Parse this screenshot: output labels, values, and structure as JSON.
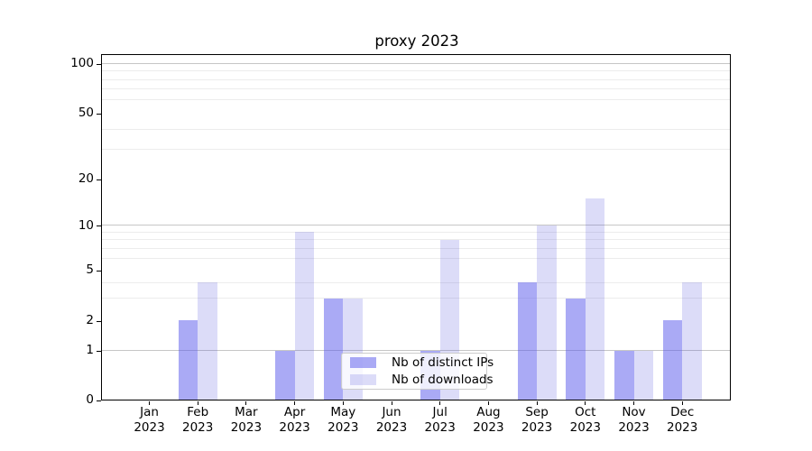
{
  "chart_data": {
    "type": "bar",
    "title": "proxy 2023",
    "categories": [
      "Jan",
      "Feb",
      "Mar",
      "Apr",
      "May",
      "Jun",
      "Jul",
      "Aug",
      "Sep",
      "Oct",
      "Nov",
      "Dec"
    ],
    "category_year": "2023",
    "series": [
      {
        "name": "Nb of distinct IPs",
        "color": "rgba(85,85,235,0.5)",
        "values": [
          0,
          2,
          0,
          1,
          3,
          0,
          1,
          0,
          4,
          3,
          1,
          2
        ]
      },
      {
        "name": "Nb of downloads",
        "color": "rgba(80,80,220,0.2)",
        "values": [
          0,
          4,
          0,
          9,
          3,
          0,
          8,
          0,
          10,
          15,
          1,
          4
        ]
      }
    ],
    "yaxis": {
      "scale": "symlog",
      "ticks": [
        0,
        1,
        2,
        5,
        10,
        20,
        50,
        100
      ],
      "ylim": [
        0,
        110
      ],
      "major_gridline_values": [
        1,
        10,
        100
      ],
      "minor_gridline_values": [
        3,
        4,
        6,
        7,
        8,
        9,
        30,
        40,
        60,
        70,
        80,
        90
      ],
      "scale_anchors": [
        [
          0,
          0
        ],
        [
          1,
          0.1427
        ],
        [
          2,
          0.2296
        ],
        [
          5,
          0.3757
        ],
        [
          10,
          0.5061
        ],
        [
          20,
          0.641
        ],
        [
          50,
          0.8314
        ],
        [
          100,
          0.9757
        ]
      ]
    },
    "legend": {
      "position": "lower center"
    },
    "grid": true,
    "colors": {
      "major_grid": "#c6c6c6",
      "minor_grid": "#ececec",
      "axis": "#000000",
      "text": "#000000"
    }
  }
}
